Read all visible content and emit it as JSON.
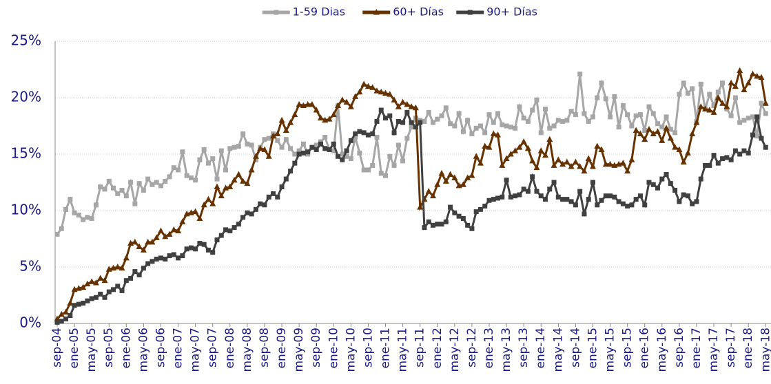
{
  "chart_data": {
    "type": "line",
    "categories": [
      "sep-04",
      null,
      null,
      null,
      "ene-05",
      null,
      null,
      null,
      "may-05",
      null,
      null,
      null,
      "sep-05",
      null,
      null,
      null,
      "ene-06",
      null,
      null,
      null,
      "may-06",
      null,
      null,
      null,
      "sep-06",
      null,
      null,
      null,
      "ene-07",
      null,
      null,
      null,
      "may-07",
      null,
      null,
      null,
      "sep-07",
      null,
      null,
      null,
      "ene-08",
      null,
      null,
      null,
      "may-08",
      null,
      null,
      null,
      "sep-08",
      null,
      null,
      null,
      "ene-09",
      null,
      null,
      null,
      "may-09",
      null,
      null,
      null,
      "sep-09",
      null,
      null,
      null,
      "ene-10",
      null,
      null,
      null,
      "may-10",
      null,
      null,
      null,
      "sep-10",
      null,
      null,
      null,
      "ene-11",
      null,
      null,
      null,
      "may-11",
      null,
      null,
      null,
      "sep-11",
      null,
      null,
      null,
      "ene-12",
      null,
      null,
      null,
      "may-12",
      null,
      null,
      null,
      "sep-12",
      null,
      null,
      null,
      "ene-13",
      null,
      null,
      null,
      "may-13",
      null,
      null,
      null,
      "sep-13",
      null,
      null,
      null,
      "ene-14",
      null,
      null,
      null,
      "may-14",
      null,
      null,
      null,
      "sep-14",
      null,
      null,
      null,
      "ene-15",
      null,
      null,
      null,
      "may-15",
      null,
      null,
      null,
      "sep-15",
      null,
      null,
      null,
      "ene-16",
      null,
      null,
      null,
      "may-16",
      null,
      null,
      null,
      "sep-16",
      null,
      null,
      null,
      "ene-17",
      null,
      null,
      null,
      "may-17",
      null,
      null,
      null,
      "sep-17",
      null,
      null,
      null,
      "ene-18",
      null,
      null,
      null,
      "may-18"
    ],
    "series": [
      {
        "name": "1-59 Dias",
        "color": "#a6a6a6",
        "marker": "square",
        "values": [
          7.9,
          8.4,
          10.1,
          11.0,
          9.8,
          9.6,
          9.2,
          9.4,
          9.3,
          10.5,
          12.1,
          11.9,
          12.6,
          12.0,
          11.5,
          11.8,
          11.3,
          12.5,
          10.6,
          12.4,
          11.8,
          12.8,
          12.3,
          12.5,
          12.2,
          12.6,
          13.0,
          13.8,
          13.6,
          15.2,
          13.1,
          12.9,
          12.7,
          14.5,
          15.4,
          14.2,
          14.6,
          12.8,
          15.3,
          13.6,
          15.5,
          15.6,
          15.7,
          16.8,
          15.9,
          15.8,
          14.5,
          15.6,
          16.3,
          16.4,
          16.8,
          16.2,
          15.6,
          16.3,
          15.5,
          15.0,
          15.3,
          15.9,
          15.0,
          15.6,
          15.8,
          16.1,
          16.5,
          15.4,
          15.3,
          19.3,
          15.0,
          14.8,
          14.6,
          16.5,
          15.1,
          13.6,
          13.6,
          14.0,
          16.5,
          13.3,
          13.1,
          14.8,
          14.0,
          15.8,
          14.4,
          16.4,
          17.4,
          18.2,
          18.0,
          17.9,
          18.7,
          17.8,
          18.1,
          18.4,
          19.1,
          17.7,
          17.5,
          18.6,
          17.0,
          18.0,
          16.8,
          17.3,
          17.5,
          16.9,
          18.5,
          17.8,
          18.6,
          17.6,
          17.5,
          17.4,
          17.3,
          19.2,
          18.2,
          17.9,
          18.9,
          19.8,
          16.9,
          19.0,
          17.3,
          17.5,
          18.0,
          17.9,
          18.0,
          18.8,
          18.5,
          22.1,
          18.6,
          17.9,
          18.3,
          20.0,
          21.3,
          19.9,
          18.3,
          20.1,
          17.4,
          19.3,
          18.5,
          17.5,
          18.4,
          18.5,
          17.1,
          19.2,
          18.6,
          17.7,
          17.4,
          18.3,
          17.2,
          16.9,
          20.3,
          21.3,
          20.4,
          20.8,
          17.9,
          21.2,
          19.0,
          20.3,
          19.3,
          20.5,
          21.3,
          19.0,
          18.4,
          20.0,
          17.8,
          18.0,
          18.2,
          18.3,
          16.6,
          19.5,
          18.6
        ]
      },
      {
        "name": "60+ Días",
        "color": "#663300",
        "marker": "triangle",
        "values": [
          0.4,
          0.8,
          1.0,
          1.8,
          3.0,
          3.1,
          3.2,
          3.5,
          3.7,
          3.6,
          4.0,
          3.8,
          4.8,
          4.9,
          5.0,
          4.9,
          5.8,
          7.1,
          7.2,
          6.8,
          6.5,
          7.2,
          7.2,
          7.6,
          8.2,
          7.7,
          7.9,
          8.3,
          8.2,
          9.0,
          9.7,
          9.8,
          9.9,
          9.3,
          10.5,
          11.0,
          10.6,
          12.1,
          11.3,
          12.0,
          12.1,
          12.7,
          13.2,
          12.6,
          12.4,
          13.6,
          14.8,
          15.5,
          15.4,
          14.8,
          16.6,
          16.8,
          18.0,
          17.1,
          17.8,
          18.5,
          19.4,
          19.3,
          19.4,
          19.4,
          18.9,
          18.2,
          18.0,
          18.1,
          18.5,
          19.3,
          19.8,
          19.6,
          19.2,
          20.1,
          20.5,
          21.2,
          21.0,
          20.9,
          20.6,
          20.5,
          20.4,
          20.3,
          19.8,
          19.2,
          19.6,
          19.4,
          19.2,
          19.1,
          10.3,
          11.0,
          11.7,
          11.3,
          12.3,
          13.3,
          12.6,
          13.2,
          12.9,
          12.2,
          12.3,
          12.9,
          13.1,
          14.8,
          14.2,
          15.7,
          15.6,
          16.8,
          16.7,
          14.0,
          14.6,
          15.0,
          15.3,
          15.6,
          16.1,
          15.5,
          14.4,
          13.8,
          15.3,
          14.9,
          16.3,
          14.0,
          14.5,
          14.1,
          14.3,
          13.9,
          14.3,
          13.9,
          13.5,
          14.6,
          13.9,
          15.7,
          15.4,
          14.1,
          14.1,
          14.0,
          14.1,
          14.2,
          13.5,
          14.5,
          17.1,
          16.8,
          16.3,
          17.2,
          16.8,
          17.0,
          16.2,
          17.3,
          16.4,
          15.6,
          15.4,
          14.3,
          15.1,
          16.8,
          17.8,
          19.2,
          19.0,
          18.9,
          18.7,
          20.0,
          19.5,
          19.2,
          21.3,
          21.0,
          22.4,
          20.7,
          21.3,
          22.1,
          21.9,
          21.8,
          19.5
        ]
      },
      {
        "name": "90+ Días",
        "color": "#404040",
        "marker": "square",
        "values": [
          0.1,
          0.2,
          0.4,
          0.7,
          1.6,
          1.7,
          1.8,
          2.0,
          2.2,
          2.3,
          2.6,
          2.3,
          2.8,
          3.0,
          3.3,
          2.9,
          3.8,
          4.0,
          4.6,
          4.3,
          4.9,
          5.3,
          5.5,
          5.7,
          5.8,
          5.7,
          6.0,
          6.1,
          5.8,
          6.0,
          6.6,
          6.7,
          6.6,
          7.1,
          7.0,
          6.5,
          6.3,
          7.4,
          7.8,
          8.3,
          8.2,
          8.5,
          8.8,
          9.4,
          9.8,
          9.7,
          10.1,
          10.6,
          10.5,
          11.2,
          11.5,
          11.2,
          12.1,
          12.8,
          13.5,
          14.2,
          15.0,
          15.1,
          15.2,
          15.6,
          15.4,
          15.9,
          15.5,
          15.4,
          15.9,
          14.8,
          14.5,
          15.3,
          16.2,
          16.8,
          17.0,
          16.9,
          16.7,
          16.8,
          17.9,
          18.9,
          18.2,
          18.4,
          16.9,
          17.9,
          17.8,
          18.7,
          17.8,
          17.4,
          17.8,
          8.5,
          9.0,
          8.7,
          8.8,
          8.8,
          9.0,
          10.3,
          9.8,
          9.5,
          9.3,
          8.7,
          8.4,
          9.9,
          10.1,
          10.4,
          10.9,
          11.0,
          11.1,
          11.2,
          12.7,
          11.2,
          11.3,
          11.4,
          11.9,
          11.7,
          13.0,
          11.7,
          11.3,
          11.0,
          11.9,
          12.5,
          11.2,
          11.0,
          11.0,
          10.8,
          10.5,
          11.7,
          9.7,
          11.0,
          12.5,
          10.5,
          10.9,
          11.3,
          11.3,
          11.2,
          10.8,
          10.6,
          10.4,
          10.5,
          11.0,
          11.3,
          10.5,
          12.5,
          12.3,
          12.0,
          12.8,
          13.2,
          12.4,
          11.8,
          10.8,
          11.4,
          11.3,
          10.6,
          10.8,
          12.8,
          14.0,
          14.0,
          14.9,
          14.2,
          14.6,
          14.7,
          14.5,
          15.3,
          15.0,
          15.3,
          15.1,
          16.7,
          18.3,
          16.4,
          15.6
        ]
      }
    ],
    "ylim": [
      0,
      25
    ],
    "yticks": [
      {
        "value": 0,
        "label": "0%"
      },
      {
        "value": 5,
        "label": "5%"
      },
      {
        "value": 10,
        "label": "10%"
      },
      {
        "value": 15,
        "label": "15%"
      },
      {
        "value": 20,
        "label": "20%"
      },
      {
        "value": 25,
        "label": "25%"
      }
    ],
    "grid": true,
    "legend": "top"
  }
}
